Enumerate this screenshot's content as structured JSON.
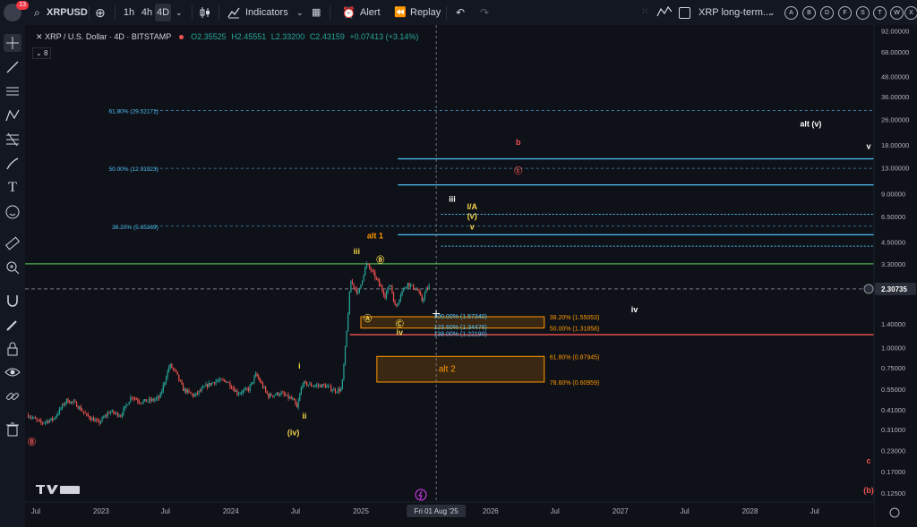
{
  "toolbar": {
    "avatar_badge": "13",
    "symbol": "XRPUSD",
    "timeframes": [
      "1h",
      "4h",
      "4D"
    ],
    "active_timeframe": "4D",
    "indicators_label": "Indicators",
    "alert_label": "Alert",
    "replay_label": "Replay",
    "layout_name": "XRP long-term...",
    "watchlist_letters": [
      "A",
      "B",
      "D",
      "F",
      "S",
      "T",
      "W",
      "X"
    ]
  },
  "legend": {
    "symbol_text": "XRP / U.S. Dollar · 4D · BITSTAMP",
    "open": "O2.35525",
    "high": "H2.45551",
    "low": "L2.33200",
    "close": "C2.43159",
    "change": "+0.07413 (+3.14%)",
    "layers_count": "8"
  },
  "colors": {
    "up": "#26a69a",
    "down": "#ef5350",
    "fib_blue": "#4fc3f7",
    "orange": "#ff9800",
    "yellow": "#f5d34a",
    "green": "#4caf50",
    "price_axis_bg": "#2a2e39"
  },
  "chart_data": {
    "type": "candlestick",
    "scale": "log",
    "ylim": [
      0.11,
      100
    ],
    "x_range": [
      "2022-06-01",
      "2028-12-15"
    ],
    "x_ticks": [
      {
        "label": "Jul",
        "date": "2022-07-01"
      },
      {
        "label": "2023",
        "date": "2023-01-01"
      },
      {
        "label": "Jul",
        "date": "2023-07-01"
      },
      {
        "label": "2024",
        "date": "2024-01-01"
      },
      {
        "label": "Jul",
        "date": "2024-07-01"
      },
      {
        "label": "2025",
        "date": "2025-01-01"
      },
      {
        "label": "2026",
        "date": "2026-01-01"
      },
      {
        "label": "Jul",
        "date": "2026-07-01"
      },
      {
        "label": "2027",
        "date": "2027-01-01"
      },
      {
        "label": "Jul",
        "date": "2027-07-01"
      },
      {
        "label": "2028",
        "date": "2028-01-01"
      },
      {
        "label": "Jul",
        "date": "2028-07-01"
      }
    ],
    "cursor_date_label": "Fri 01 Aug '25",
    "cursor_date": "2025-08-01",
    "y_ticks": [
      92.0,
      68.0,
      48.0,
      36.0,
      26.0,
      18.0,
      13.0,
      9.0,
      6.5,
      4.5,
      3.3,
      2.30735,
      1.4,
      1.0,
      0.75,
      0.55,
      0.41,
      0.31,
      0.23,
      0.17,
      0.125
    ],
    "y_tick_labels": [
      "92.00000",
      "68.00000",
      "48.00000",
      "36.00000",
      "26.00000",
      "18.00000",
      "13.00000",
      "9.00000",
      "6.50000",
      "4.50000",
      "3.30000",
      "2.30735",
      "1.40000",
      "1.00000",
      "0.75000",
      "0.55000",
      "0.41000",
      "0.31000",
      "0.23000",
      "0.17000",
      "0.12500"
    ],
    "last_price": 2.30735,
    "price_path": [
      [
        "2022-06-10",
        0.38
      ],
      [
        "2022-07-15",
        0.34
      ],
      [
        "2022-08-20",
        0.36
      ],
      [
        "2022-09-25",
        0.47
      ],
      [
        "2022-10-20",
        0.45
      ],
      [
        "2022-11-20",
        0.38
      ],
      [
        "2022-12-25",
        0.34
      ],
      [
        "2023-01-25",
        0.4
      ],
      [
        "2023-02-25",
        0.38
      ],
      [
        "2023-03-28",
        0.5
      ],
      [
        "2023-04-20",
        0.46
      ],
      [
        "2023-05-25",
        0.47
      ],
      [
        "2023-06-15",
        0.49
      ],
      [
        "2023-07-13",
        0.78
      ],
      [
        "2023-07-30",
        0.7
      ],
      [
        "2023-08-20",
        0.55
      ],
      [
        "2023-09-20",
        0.5
      ],
      [
        "2023-10-25",
        0.58
      ],
      [
        "2023-11-20",
        0.62
      ],
      [
        "2023-12-20",
        0.62
      ],
      [
        "2024-01-20",
        0.52
      ],
      [
        "2024-02-20",
        0.55
      ],
      [
        "2024-03-12",
        0.68
      ],
      [
        "2024-04-15",
        0.5
      ],
      [
        "2024-05-20",
        0.52
      ],
      [
        "2024-06-25",
        0.47
      ],
      [
        "2024-07-05",
        0.42
      ],
      [
        "2024-07-20",
        0.6
      ],
      [
        "2024-08-20",
        0.58
      ],
      [
        "2024-09-20",
        0.58
      ],
      [
        "2024-10-20",
        0.54
      ],
      [
        "2024-11-08",
        0.55
      ],
      [
        "2024-11-20",
        1.1
      ],
      [
        "2024-12-03",
        2.6
      ],
      [
        "2024-12-25",
        2.15
      ],
      [
        "2025-01-16",
        3.3
      ],
      [
        "2025-01-28",
        3.05
      ],
      [
        "2025-02-12",
        2.7
      ],
      [
        "2025-03-10",
        2.1
      ],
      [
        "2025-03-25",
        2.5
      ],
      [
        "2025-04-08",
        1.75
      ],
      [
        "2025-04-25",
        2.2
      ],
      [
        "2025-05-12",
        2.5
      ],
      [
        "2025-06-10",
        2.25
      ],
      [
        "2025-06-22",
        1.95
      ],
      [
        "2025-07-05",
        2.3
      ],
      [
        "2025-07-15",
        2.43
      ]
    ],
    "horizontal_lines": [
      {
        "price": 3.3,
        "color": "#4caf50",
        "from": "2022-06-01",
        "to": "2028-12-15",
        "style": "solid"
      },
      {
        "price": 2.30735,
        "color": "#787b86",
        "from": "2022-06-01",
        "to": "2028-12-15",
        "style": "dashed"
      },
      {
        "price": 1.2,
        "color": "#ef5350",
        "from": "2024-12-01",
        "to": "2028-12-15",
        "style": "solid"
      },
      {
        "price": 14.8,
        "color": "#4fc3f7",
        "from": "2025-04-15",
        "to": "2028-12-15",
        "style": "solid"
      },
      {
        "price": 10.2,
        "color": "#4fc3f7",
        "from": "2025-04-15",
        "to": "2028-12-15",
        "style": "solid"
      },
      {
        "price": 5.0,
        "color": "#4fc3f7",
        "from": "2025-04-15",
        "to": "2028-12-15",
        "style": "solid"
      },
      {
        "price": 6.7,
        "color": "#4fc3f7",
        "from": "2025-08-15",
        "to": "2028-12-15",
        "style": "dotted"
      },
      {
        "price": 4.25,
        "color": "#4fc3f7",
        "from": "2025-08-15",
        "to": "2028-12-15",
        "style": "dotted"
      }
    ],
    "fib_extension_levels": [
      {
        "label": "61.80% (29.52171)",
        "price": 29.52171
      },
      {
        "label": "50.00% (12.91923)",
        "price": 12.91923
      },
      {
        "label": "38.20% (5.65369)",
        "price": 5.65369
      }
    ],
    "fib_extension_span": [
      "2023-06-01",
      "2028-12-15"
    ],
    "support_labels": [
      {
        "label": "100.00% (1.57340)",
        "price": 1.5734
      },
      {
        "label": "123.60% (1.34476)",
        "price": 1.34476
      },
      {
        "label": "138.00% (1.22190)",
        "price": 1.2219
      }
    ],
    "retracement_labels": [
      {
        "label": "38.20% (1.55053)",
        "price": 1.55053
      },
      {
        "label": "50.00% (1.31858)",
        "price": 1.31858
      },
      {
        "label": "61.80% (0.87945)",
        "price": 0.87945
      },
      {
        "label": "78.60% (0.60959)",
        "price": 0.60959
      }
    ],
    "target_boxes": [
      {
        "from": "2025-01-01",
        "to": "2026-06-01",
        "top": 1.55053,
        "bottom": 1.31858,
        "color": "#ff9800"
      },
      {
        "from": "2025-02-15",
        "to": "2026-06-01",
        "top": 0.88,
        "bottom": 0.61,
        "color": "#ff9800",
        "label": "alt 2"
      }
    ],
    "wave_labels": [
      {
        "text": "alt (v)",
        "date": "2028-06-20",
        "price": 23.5,
        "color": "#ffffff"
      },
      {
        "text": "v",
        "date": "2028-12-05",
        "price": 17.0,
        "color": "#ffffff"
      },
      {
        "text": "b",
        "date": "2026-03-20",
        "price": 18.0,
        "color": "#ef5350"
      },
      {
        "text": "ⓒ",
        "date": "2026-03-20",
        "price": 12.0,
        "color": "#ef5350"
      },
      {
        "text": "iii",
        "date": "2025-09-15",
        "price": 8.0,
        "color": "#ffffff"
      },
      {
        "text": "I/A",
        "date": "2025-11-10",
        "price": 7.2,
        "color": "#f5d34a"
      },
      {
        "text": "(v)",
        "date": "2025-11-10",
        "price": 6.3,
        "color": "#f5d34a"
      },
      {
        "text": "v",
        "date": "2025-11-10",
        "price": 5.4,
        "color": "#f5d34a"
      },
      {
        "text": "alt 1",
        "date": "2025-02-10",
        "price": 4.75,
        "color": "#ff9800"
      },
      {
        "text": "iii",
        "date": "2024-12-20",
        "price": 3.8,
        "color": "#f5d34a"
      },
      {
        "text": "Ⓑ",
        "date": "2025-02-25",
        "price": 3.35,
        "color": "#f5d34a"
      },
      {
        "text": "Ⓐ",
        "date": "2025-01-20",
        "price": 1.45,
        "color": "#f5d34a"
      },
      {
        "text": "Ⓒ",
        "date": "2025-04-20",
        "price": 1.35,
        "color": "#f5d34a"
      },
      {
        "text": "iv",
        "date": "2025-04-20",
        "price": 1.19,
        "color": "#f5d34a"
      },
      {
        "text": "iv",
        "date": "2027-02-10",
        "price": 1.65,
        "color": "#ffffff"
      },
      {
        "text": "i",
        "date": "2024-07-12",
        "price": 0.74,
        "color": "#f5d34a"
      },
      {
        "text": "ii",
        "date": "2024-07-26",
        "price": 0.36,
        "color": "#f5d34a"
      },
      {
        "text": "(iv)",
        "date": "2024-06-25",
        "price": 0.285,
        "color": "#f5d34a"
      },
      {
        "text": "Ⓑ",
        "date": "2022-06-20",
        "price": 0.25,
        "color": "#ef5350"
      },
      {
        "text": "c",
        "date": "2028-12-15",
        "price": 0.19,
        "color": "#ef5350"
      },
      {
        "text": "(b)",
        "date": "2028-12-10",
        "price": 0.125,
        "color": "#ef5350"
      }
    ]
  }
}
